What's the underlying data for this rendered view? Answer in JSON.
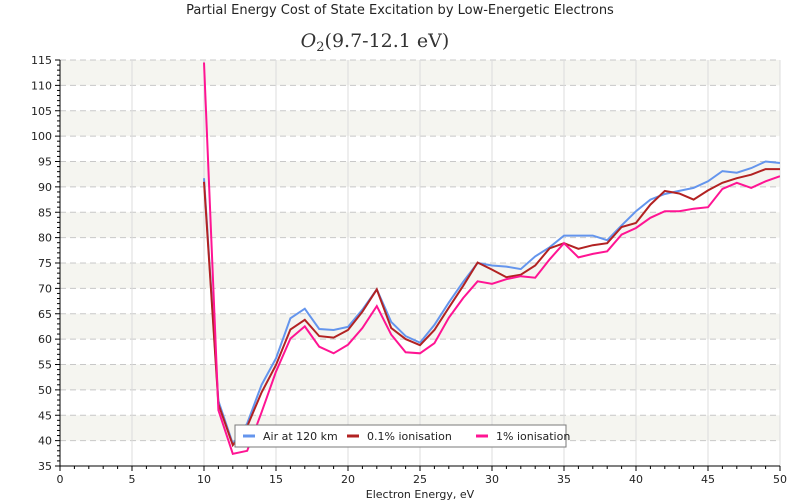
{
  "chart_data": {
    "type": "line",
    "title": "Partial Energy Cost of State Excitation by Low-Energetic Electrons",
    "subtitle": {
      "species": "O",
      "subscript": "2",
      "range": "(9.7-12.1 eV)"
    },
    "xlabel": "Electron Energy, eV",
    "ylabel": "",
    "xlim": [
      0,
      50
    ],
    "ylim": [
      35,
      115
    ],
    "x_ticks": [
      0,
      5,
      10,
      15,
      20,
      25,
      30,
      35,
      40,
      45,
      50
    ],
    "y_ticks": [
      35,
      40,
      45,
      50,
      55,
      60,
      65,
      70,
      75,
      80,
      85,
      90,
      95,
      100,
      105,
      110,
      115
    ],
    "grid": true,
    "legend_position": "bottom-center",
    "x": [
      10,
      11,
      12,
      13,
      14,
      15,
      16,
      17,
      18,
      19,
      20,
      21,
      22,
      23,
      24,
      25,
      26,
      27,
      28,
      29,
      30,
      31,
      32,
      33,
      34,
      35,
      36,
      37,
      38,
      39,
      40,
      41,
      42,
      43,
      44,
      45,
      46,
      47,
      48,
      49,
      50
    ],
    "series": [
      {
        "name": "Air at 120 km",
        "color": "#6495ED",
        "values": [
          91.7,
          47.8,
          39.4,
          43.4,
          51.0,
          56.2,
          64.1,
          66.0,
          62.0,
          61.8,
          62.4,
          65.8,
          69.8,
          63.4,
          60.6,
          59.3,
          62.8,
          67.2,
          71.3,
          75.0,
          74.5,
          74.3,
          73.8,
          76.3,
          78.1,
          80.4,
          80.4,
          80.4,
          79.5,
          82.4,
          85.2,
          87.5,
          88.6,
          89.2,
          89.8,
          91.1,
          93.1,
          92.8,
          93.7,
          95.0,
          94.7
        ]
      },
      {
        "name": "0.1% ionisation",
        "color": "#B22222",
        "values": [
          91.0,
          47.2,
          39.1,
          42.8,
          49.5,
          54.9,
          61.9,
          63.8,
          60.6,
          60.3,
          61.8,
          65.4,
          69.8,
          62.2,
          60.0,
          58.8,
          61.8,
          66.2,
          70.5,
          75.1,
          73.7,
          72.2,
          72.7,
          74.5,
          77.9,
          78.9,
          77.8,
          78.5,
          78.9,
          82.1,
          82.9,
          86.5,
          89.2,
          88.7,
          87.5,
          89.3,
          90.8,
          91.7,
          92.4,
          93.5,
          93.5
        ]
      },
      {
        "name": "1% ionisation",
        "color": "#FF1493",
        "values": [
          114.5,
          46.0,
          37.4,
          38.0,
          45.6,
          53.6,
          60.1,
          62.5,
          58.5,
          57.2,
          58.9,
          62.2,
          66.5,
          60.9,
          57.4,
          57.2,
          59.2,
          64.2,
          68.1,
          71.4,
          70.9,
          71.8,
          72.4,
          72.1,
          75.7,
          78.9,
          76.1,
          76.8,
          77.3,
          80.6,
          81.9,
          83.9,
          85.2,
          85.2,
          85.7,
          86.0,
          89.6,
          90.8,
          89.8,
          91.1,
          92.1
        ]
      }
    ]
  }
}
